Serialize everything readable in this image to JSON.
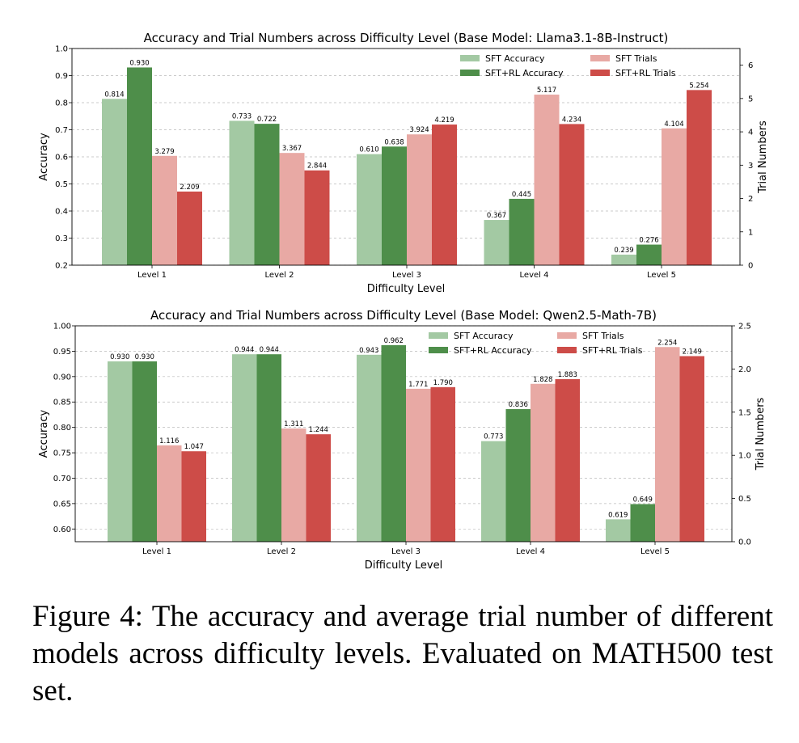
{
  "colors": {
    "sft_accuracy": "#a3c9a3",
    "sftrl_accuracy": "#4e8e4a",
    "sft_trials": "#e8a9a4",
    "sftrl_trials": "#cd4c48",
    "grid": "#bbbbbb"
  },
  "chart_data": [
    {
      "type": "bar",
      "title": "Accuracy and Trial Numbers across Difficulty Level (Base Model: Llama3.1-8B-Instruct)",
      "xlabel": "Difficulty Level",
      "ylabel": "Accuracy",
      "y2label": "Trial Numbers",
      "categories": [
        "Level 1",
        "Level 2",
        "Level 3",
        "Level 4",
        "Level 5"
      ],
      "ylim": [
        0.2,
        1.0
      ],
      "yticks": [
        0.2,
        0.3,
        0.4,
        0.5,
        0.6,
        0.7,
        0.8,
        0.9,
        1.0
      ],
      "ytick_decimals": 1,
      "y2lim": [
        0,
        6.5
      ],
      "y2ticks": [
        0,
        1,
        2,
        3,
        4,
        5,
        6
      ],
      "y2tick_decimals": 0,
      "grid": true,
      "legend_position": "top-right",
      "series": [
        {
          "name": "SFT Accuracy",
          "axis": "left",
          "color_key": "sft_accuracy",
          "values": [
            0.814,
            0.733,
            0.61,
            0.367,
            0.239
          ]
        },
        {
          "name": "SFT+RL Accuracy",
          "axis": "left",
          "color_key": "sftrl_accuracy",
          "values": [
            0.93,
            0.722,
            0.638,
            0.445,
            0.276
          ]
        },
        {
          "name": "SFT Trials",
          "axis": "right",
          "color_key": "sft_trials",
          "values": [
            3.279,
            3.367,
            3.924,
            5.117,
            4.104
          ]
        },
        {
          "name": "SFT+RL Trials",
          "axis": "right",
          "color_key": "sftrl_trials",
          "values": [
            2.209,
            2.844,
            4.219,
            4.234,
            5.254
          ]
        }
      ]
    },
    {
      "type": "bar",
      "title": "Accuracy and Trial Numbers across Difficulty Level (Base Model: Qwen2.5-Math-7B)",
      "xlabel": "Difficulty Level",
      "ylabel": "Accuracy",
      "y2label": "Trial Numbers",
      "categories": [
        "Level 1",
        "Level 2",
        "Level 3",
        "Level 4",
        "Level 5"
      ],
      "ylim": [
        0.575,
        1.0
      ],
      "yticks": [
        0.6,
        0.65,
        0.7,
        0.75,
        0.8,
        0.85,
        0.9,
        0.95,
        1.0
      ],
      "ytick_decimals": 2,
      "y2lim": [
        0,
        2.5
      ],
      "y2ticks": [
        0.0,
        0.5,
        1.0,
        1.5,
        2.0,
        2.5
      ],
      "y2tick_decimals": 1,
      "grid": true,
      "legend_position": "top-right",
      "series": [
        {
          "name": "SFT Accuracy",
          "axis": "left",
          "color_key": "sft_accuracy",
          "values": [
            0.93,
            0.944,
            0.943,
            0.773,
            0.619
          ]
        },
        {
          "name": "SFT+RL Accuracy",
          "axis": "left",
          "color_key": "sftrl_accuracy",
          "values": [
            0.93,
            0.944,
            0.962,
            0.836,
            0.649
          ]
        },
        {
          "name": "SFT Trials",
          "axis": "right",
          "color_key": "sft_trials",
          "values": [
            1.116,
            1.311,
            1.771,
            1.828,
            2.254
          ]
        },
        {
          "name": "SFT+RL Trials",
          "axis": "right",
          "color_key": "sftrl_trials",
          "values": [
            1.047,
            1.244,
            1.79,
            1.883,
            2.149
          ]
        }
      ]
    }
  ],
  "caption": "Figure 4: The accuracy and average trial number of different models across difficulty levels. Evaluated on MATH500 test set."
}
